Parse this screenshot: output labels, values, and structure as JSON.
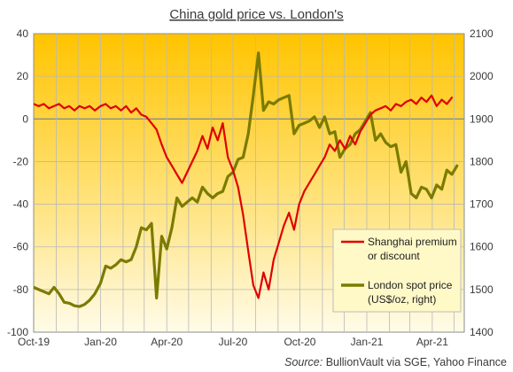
{
  "chart_data": {
    "type": "line",
    "title": "China gold price vs. London's",
    "source_label": "Source:",
    "source_value": "BullionVault via SGE, Yahoo Finance",
    "x_range": [
      "2019-10-01",
      "2021-05-15"
    ],
    "x_ticks": [
      {
        "date": "2019-10-01",
        "label": "Oct-19"
      },
      {
        "date": "2020-01-01",
        "label": "Jan-20"
      },
      {
        "date": "2020-04-01",
        "label": "Apr-20"
      },
      {
        "date": "2020-07-01",
        "label": "Jul-20"
      },
      {
        "date": "2020-10-01",
        "label": "Oct-20"
      },
      {
        "date": "2021-01-01",
        "label": "Jan-21"
      },
      {
        "date": "2021-04-01",
        "label": "Apr-21"
      }
    ],
    "ylim_left": [
      -100,
      40
    ],
    "yticks_left": [
      "40",
      "20",
      "0",
      "-20",
      "-40",
      "-60",
      "-80",
      "-100"
    ],
    "ylim_right": [
      1400,
      2100
    ],
    "yticks_right": [
      "2100",
      "2000",
      "1900",
      "1800",
      "1700",
      "1600",
      "1500",
      "1400"
    ],
    "grid": true,
    "legend_position": "bottom-right",
    "series": [
      {
        "name": "Shanghai premium or discount",
        "legend_lines": [
          "Shanghai premium",
          "or discount"
        ],
        "axis": "left",
        "color": "#e00000",
        "points": [
          [
            "2019-10-01",
            7
          ],
          [
            "2019-10-08",
            6
          ],
          [
            "2019-10-15",
            7
          ],
          [
            "2019-10-22",
            5
          ],
          [
            "2019-10-29",
            6
          ],
          [
            "2019-11-05",
            7
          ],
          [
            "2019-11-12",
            5
          ],
          [
            "2019-11-19",
            6
          ],
          [
            "2019-11-26",
            4
          ],
          [
            "2019-12-03",
            6
          ],
          [
            "2019-12-10",
            5
          ],
          [
            "2019-12-17",
            6
          ],
          [
            "2019-12-24",
            4
          ],
          [
            "2020-01-01",
            6
          ],
          [
            "2020-01-08",
            7
          ],
          [
            "2020-01-15",
            5
          ],
          [
            "2020-01-22",
            6
          ],
          [
            "2020-01-29",
            4
          ],
          [
            "2020-02-05",
            6
          ],
          [
            "2020-02-12",
            3
          ],
          [
            "2020-02-19",
            5
          ],
          [
            "2020-02-26",
            2
          ],
          [
            "2020-03-04",
            1
          ],
          [
            "2020-03-11",
            -2
          ],
          [
            "2020-03-18",
            -5
          ],
          [
            "2020-03-25",
            -12
          ],
          [
            "2020-04-01",
            -18
          ],
          [
            "2020-04-08",
            -22
          ],
          [
            "2020-04-15",
            -26
          ],
          [
            "2020-04-22",
            -30
          ],
          [
            "2020-04-29",
            -25
          ],
          [
            "2020-05-06",
            -20
          ],
          [
            "2020-05-13",
            -15
          ],
          [
            "2020-05-20",
            -8
          ],
          [
            "2020-05-27",
            -14
          ],
          [
            "2020-06-03",
            -4
          ],
          [
            "2020-06-10",
            -10
          ],
          [
            "2020-06-17",
            -2
          ],
          [
            "2020-06-24",
            -18
          ],
          [
            "2020-07-01",
            -24
          ],
          [
            "2020-07-08",
            -32
          ],
          [
            "2020-07-15",
            -45
          ],
          [
            "2020-07-22",
            -62
          ],
          [
            "2020-07-29",
            -78
          ],
          [
            "2020-08-05",
            -84
          ],
          [
            "2020-08-12",
            -72
          ],
          [
            "2020-08-19",
            -80
          ],
          [
            "2020-08-26",
            -66
          ],
          [
            "2020-09-02",
            -58
          ],
          [
            "2020-09-09",
            -50
          ],
          [
            "2020-09-16",
            -44
          ],
          [
            "2020-09-23",
            -52
          ],
          [
            "2020-09-30",
            -40
          ],
          [
            "2020-10-07",
            -34
          ],
          [
            "2020-10-14",
            -30
          ],
          [
            "2020-10-21",
            -26
          ],
          [
            "2020-10-28",
            -22
          ],
          [
            "2020-11-04",
            -18
          ],
          [
            "2020-11-11",
            -12
          ],
          [
            "2020-11-18",
            -15
          ],
          [
            "2020-11-25",
            -10
          ],
          [
            "2020-12-02",
            -14
          ],
          [
            "2020-12-09",
            -8
          ],
          [
            "2020-12-16",
            -12
          ],
          [
            "2020-12-23",
            -6
          ],
          [
            "2020-12-30",
            -2
          ],
          [
            "2021-01-06",
            2
          ],
          [
            "2021-01-13",
            4
          ],
          [
            "2021-01-20",
            5
          ],
          [
            "2021-01-27",
            6
          ],
          [
            "2021-02-03",
            4
          ],
          [
            "2021-02-10",
            7
          ],
          [
            "2021-02-17",
            6
          ],
          [
            "2021-02-24",
            8
          ],
          [
            "2021-03-03",
            9
          ],
          [
            "2021-03-10",
            7
          ],
          [
            "2021-03-17",
            10
          ],
          [
            "2021-03-24",
            8
          ],
          [
            "2021-03-31",
            11
          ],
          [
            "2021-04-07",
            6
          ],
          [
            "2021-04-14",
            9
          ],
          [
            "2021-04-21",
            7
          ],
          [
            "2021-04-28",
            10
          ]
        ]
      },
      {
        "name": "London spot price (US$/oz, right)",
        "legend_lines": [
          "London spot price",
          "(US$/oz, right)"
        ],
        "axis": "right",
        "color": "#7b7b00",
        "points": [
          [
            "2019-10-01",
            1505
          ],
          [
            "2019-10-08",
            1500
          ],
          [
            "2019-10-15",
            1495
          ],
          [
            "2019-10-22",
            1490
          ],
          [
            "2019-10-29",
            1505
          ],
          [
            "2019-11-05",
            1490
          ],
          [
            "2019-11-12",
            1470
          ],
          [
            "2019-11-19",
            1468
          ],
          [
            "2019-11-26",
            1462
          ],
          [
            "2019-12-03",
            1460
          ],
          [
            "2019-12-10",
            1465
          ],
          [
            "2019-12-17",
            1475
          ],
          [
            "2019-12-24",
            1490
          ],
          [
            "2020-01-01",
            1515
          ],
          [
            "2020-01-08",
            1555
          ],
          [
            "2020-01-15",
            1550
          ],
          [
            "2020-01-22",
            1558
          ],
          [
            "2020-01-29",
            1570
          ],
          [
            "2020-02-05",
            1565
          ],
          [
            "2020-02-12",
            1570
          ],
          [
            "2020-02-19",
            1600
          ],
          [
            "2020-02-26",
            1645
          ],
          [
            "2020-03-04",
            1640
          ],
          [
            "2020-03-11",
            1655
          ],
          [
            "2020-03-18",
            1480
          ],
          [
            "2020-03-25",
            1625
          ],
          [
            "2020-04-01",
            1595
          ],
          [
            "2020-04-08",
            1645
          ],
          [
            "2020-04-15",
            1715
          ],
          [
            "2020-04-22",
            1695
          ],
          [
            "2020-04-29",
            1705
          ],
          [
            "2020-05-06",
            1715
          ],
          [
            "2020-05-13",
            1705
          ],
          [
            "2020-05-20",
            1740
          ],
          [
            "2020-05-27",
            1725
          ],
          [
            "2020-06-03",
            1715
          ],
          [
            "2020-06-10",
            1725
          ],
          [
            "2020-06-17",
            1730
          ],
          [
            "2020-06-24",
            1765
          ],
          [
            "2020-07-01",
            1775
          ],
          [
            "2020-07-08",
            1805
          ],
          [
            "2020-07-15",
            1810
          ],
          [
            "2020-07-22",
            1865
          ],
          [
            "2020-07-29",
            1955
          ],
          [
            "2020-08-05",
            2055
          ],
          [
            "2020-08-12",
            1920
          ],
          [
            "2020-08-19",
            1940
          ],
          [
            "2020-08-26",
            1935
          ],
          [
            "2020-09-02",
            1945
          ],
          [
            "2020-09-09",
            1950
          ],
          [
            "2020-09-16",
            1955
          ],
          [
            "2020-09-23",
            1865
          ],
          [
            "2020-09-30",
            1885
          ],
          [
            "2020-10-07",
            1890
          ],
          [
            "2020-10-14",
            1895
          ],
          [
            "2020-10-21",
            1905
          ],
          [
            "2020-10-28",
            1880
          ],
          [
            "2020-11-04",
            1905
          ],
          [
            "2020-11-11",
            1865
          ],
          [
            "2020-11-18",
            1870
          ],
          [
            "2020-11-25",
            1810
          ],
          [
            "2020-12-02",
            1830
          ],
          [
            "2020-12-09",
            1840
          ],
          [
            "2020-12-16",
            1865
          ],
          [
            "2020-12-23",
            1875
          ],
          [
            "2020-12-30",
            1895
          ],
          [
            "2021-01-06",
            1915
          ],
          [
            "2021-01-13",
            1850
          ],
          [
            "2021-01-20",
            1865
          ],
          [
            "2021-01-27",
            1845
          ],
          [
            "2021-02-03",
            1835
          ],
          [
            "2021-02-10",
            1840
          ],
          [
            "2021-02-17",
            1775
          ],
          [
            "2021-02-24",
            1800
          ],
          [
            "2021-03-03",
            1725
          ],
          [
            "2021-03-10",
            1715
          ],
          [
            "2021-03-17",
            1740
          ],
          [
            "2021-03-24",
            1735
          ],
          [
            "2021-03-31",
            1715
          ],
          [
            "2021-04-07",
            1745
          ],
          [
            "2021-04-14",
            1735
          ],
          [
            "2021-04-21",
            1780
          ],
          [
            "2021-04-28",
            1770
          ],
          [
            "2021-05-05",
            1790
          ]
        ]
      }
    ]
  }
}
